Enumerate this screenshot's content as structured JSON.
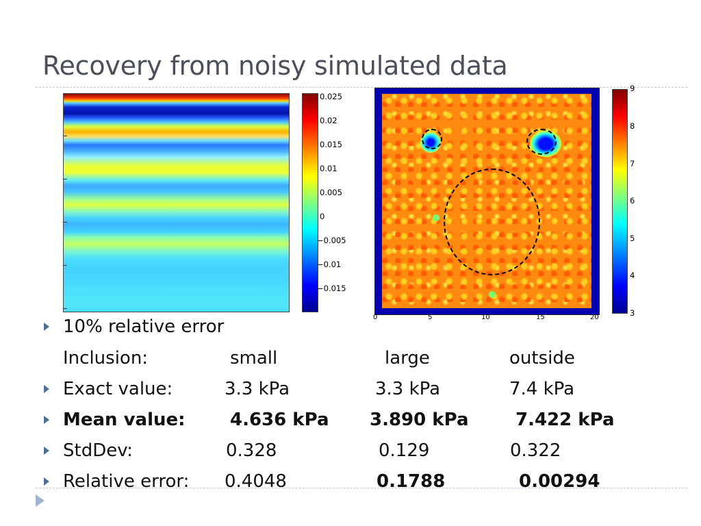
{
  "slide": {
    "title": "Recovery from noisy simulated data"
  },
  "figure_left": {
    "colorbar_ticks": [
      "0.025",
      "0.02",
      "0.015",
      "0.01",
      "0.005",
      "0",
      "−0.005",
      "−0.01",
      "−0.015"
    ]
  },
  "figure_right": {
    "colorbar_ticks": [
      "9",
      "8",
      "7",
      "6",
      "5",
      "4",
      "3"
    ],
    "x_ticks": [
      "0",
      "5",
      "10",
      "15",
      "20"
    ]
  },
  "bullets": [
    {
      "label": "10% relative error",
      "bullet": true
    },
    {
      "label": "Inclusion:",
      "small": "small",
      "large": "large",
      "outside": "outside",
      "bullet": false
    },
    {
      "label": "Exact value:",
      "small": "3.3 kPa",
      "large": "3.3 kPa",
      "outside": "7.4 kPa",
      "bullet": true
    },
    {
      "label": "Mean value:",
      "small": "4.636 kPa",
      "large": "3.890 kPa",
      "outside": "7.422 kPa",
      "bullet": true,
      "bold": true
    },
    {
      "label": "StdDev:",
      "small": "0.328",
      "large": "0.129",
      "outside": "0.322",
      "bullet": true
    },
    {
      "label": "Relative error:",
      "small": "0.4048",
      "large": "0.1788",
      "outside": "0.00294",
      "bullet": true
    }
  ],
  "colors": {
    "title": "#4a4f5a",
    "bullet": "#4f6f96",
    "rule": "#b9c6d6"
  }
}
